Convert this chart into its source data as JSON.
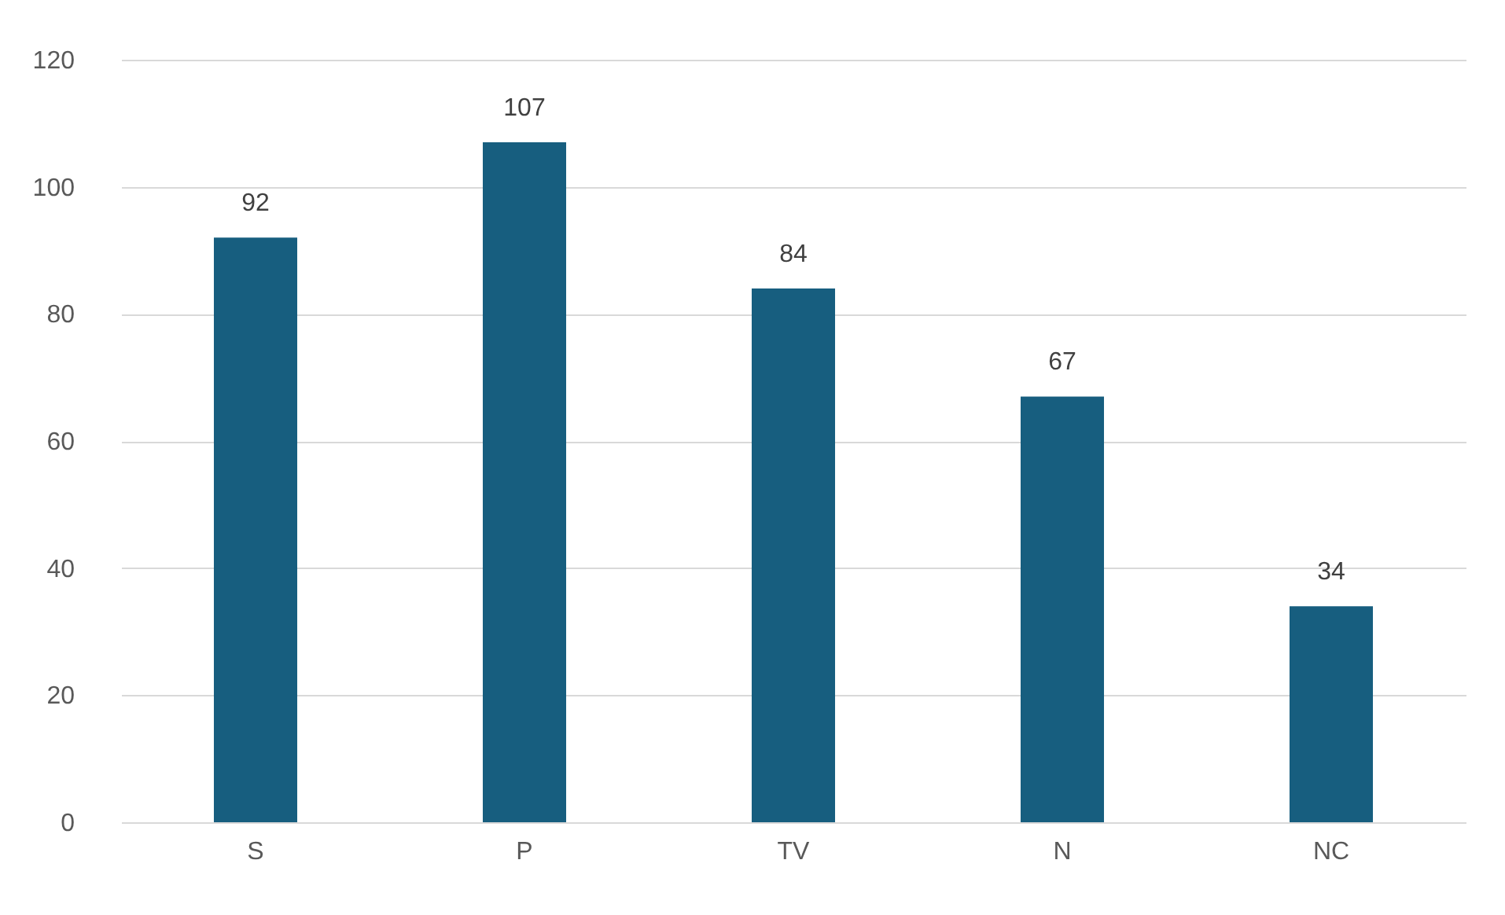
{
  "chart_data": {
    "type": "bar",
    "categories": [
      "S",
      "P",
      "TV",
      "N",
      "NC"
    ],
    "values": [
      92,
      107,
      84,
      67,
      34
    ],
    "color": "#175e7f",
    "ylim": [
      0,
      120
    ],
    "yticks": [
      0,
      20,
      40,
      60,
      80,
      100,
      120
    ],
    "grid": "y",
    "data_labels": true
  }
}
